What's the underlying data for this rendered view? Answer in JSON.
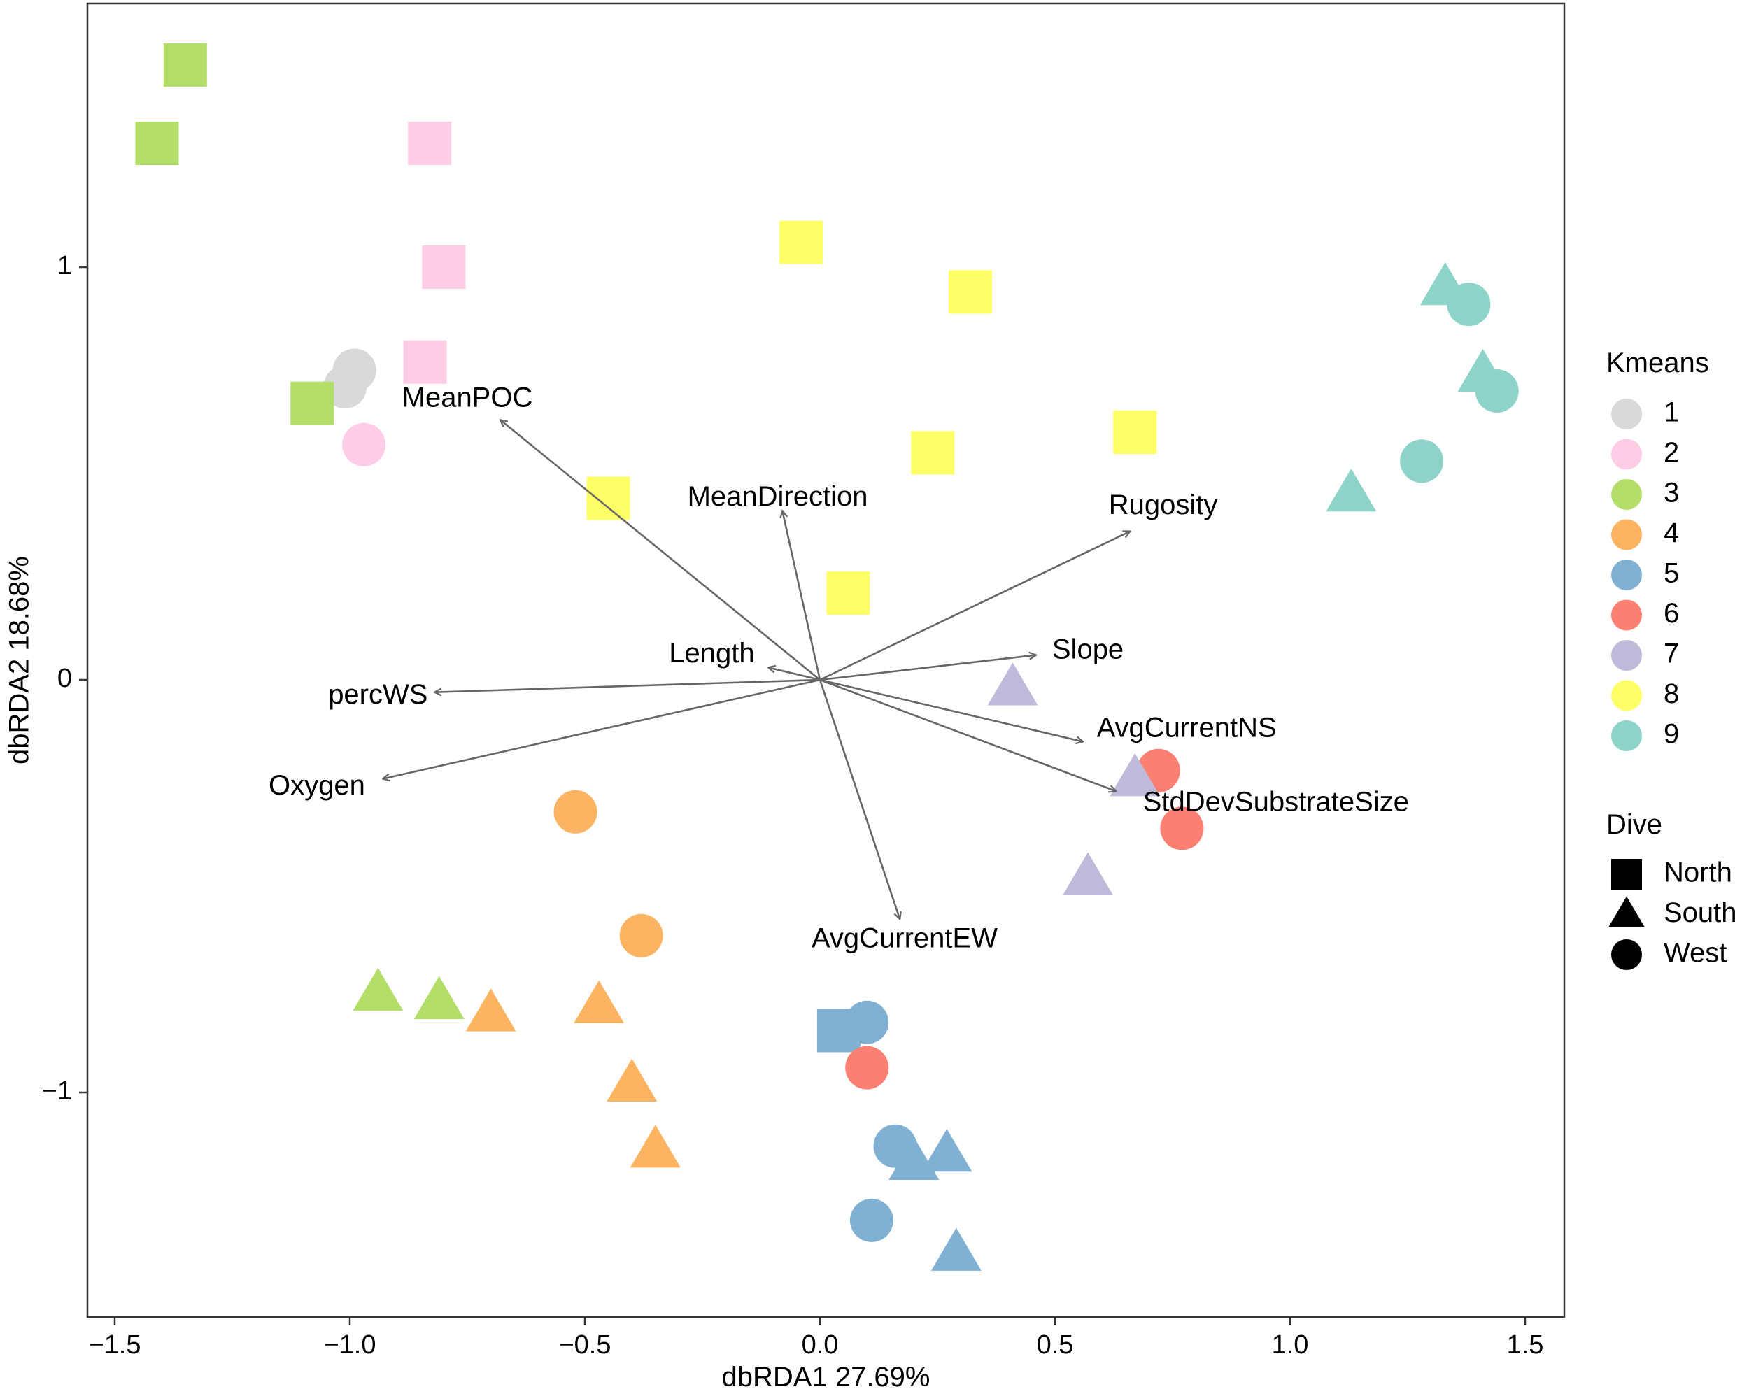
{
  "chart_data": {
    "type": "scatter",
    "title": "",
    "xlabel": "dbRDA1 27.69%",
    "ylabel": "dbRDA2 18.68%",
    "xlim": [
      -1.55,
      1.58
    ],
    "ylim": [
      -1.55,
      1.63
    ],
    "x_ticks": [
      -1.5,
      -1.0,
      -0.5,
      0.0,
      0.5,
      1.0,
      1.5
    ],
    "x_tick_labels": [
      "−1.5",
      "−1.0",
      "−0.5",
      "0.0",
      "0.5",
      "1.0",
      "1.5"
    ],
    "y_ticks": [
      -1,
      0,
      1
    ],
    "y_tick_labels": [
      "−1",
      "0",
      "1"
    ],
    "grid": false,
    "legend": {
      "position": "right",
      "color_title": "Kmeans",
      "shape_title": "Dive",
      "kmeans": [
        {
          "label": "1",
          "color": "#d9d9d9"
        },
        {
          "label": "2",
          "color": "#fccde5"
        },
        {
          "label": "3",
          "color": "#b3de69"
        },
        {
          "label": "4",
          "color": "#fdb462"
        },
        {
          "label": "5",
          "color": "#80b1d3"
        },
        {
          "label": "6",
          "color": "#fb8072"
        },
        {
          "label": "7",
          "color": "#bebada"
        },
        {
          "label": "8",
          "color": "#ffff66"
        },
        {
          "label": "9",
          "color": "#8dd3c7"
        }
      ],
      "dive": [
        {
          "label": "North",
          "shape": "square"
        },
        {
          "label": "South",
          "shape": "triangle"
        },
        {
          "label": "West",
          "shape": "circle"
        }
      ]
    },
    "points": [
      {
        "x": -1.01,
        "y": 0.71,
        "k": 1,
        "dive": "West"
      },
      {
        "x": -0.99,
        "y": 0.75,
        "k": 1,
        "dive": "West"
      },
      {
        "x": -0.83,
        "y": 1.3,
        "k": 2,
        "dive": "North"
      },
      {
        "x": -0.8,
        "y": 1.0,
        "k": 2,
        "dive": "North"
      },
      {
        "x": -0.84,
        "y": 0.77,
        "k": 2,
        "dive": "North"
      },
      {
        "x": -0.97,
        "y": 0.57,
        "k": 2,
        "dive": "West"
      },
      {
        "x": -1.35,
        "y": 1.49,
        "k": 3,
        "dive": "North"
      },
      {
        "x": -1.41,
        "y": 1.3,
        "k": 3,
        "dive": "North"
      },
      {
        "x": -1.08,
        "y": 0.67,
        "k": 3,
        "dive": "North"
      },
      {
        "x": -0.94,
        "y": -0.76,
        "k": 3,
        "dive": "South"
      },
      {
        "x": -0.81,
        "y": -0.78,
        "k": 3,
        "dive": "South"
      },
      {
        "x": -0.52,
        "y": -0.32,
        "k": 4,
        "dive": "West"
      },
      {
        "x": -0.38,
        "y": -0.62,
        "k": 4,
        "dive": "West"
      },
      {
        "x": -0.7,
        "y": -0.81,
        "k": 4,
        "dive": "South"
      },
      {
        "x": -0.47,
        "y": -0.79,
        "k": 4,
        "dive": "South"
      },
      {
        "x": -0.4,
        "y": -0.98,
        "k": 4,
        "dive": "South"
      },
      {
        "x": -0.35,
        "y": -1.14,
        "k": 4,
        "dive": "South"
      },
      {
        "x": 0.04,
        "y": -0.85,
        "k": 5,
        "dive": "North"
      },
      {
        "x": 0.1,
        "y": -0.83,
        "k": 5,
        "dive": "West"
      },
      {
        "x": 0.16,
        "y": -1.13,
        "k": 5,
        "dive": "West"
      },
      {
        "x": 0.11,
        "y": -1.31,
        "k": 5,
        "dive": "West"
      },
      {
        "x": 0.2,
        "y": -1.17,
        "k": 5,
        "dive": "South"
      },
      {
        "x": 0.27,
        "y": -1.15,
        "k": 5,
        "dive": "South"
      },
      {
        "x": 0.29,
        "y": -1.39,
        "k": 5,
        "dive": "South"
      },
      {
        "x": 0.1,
        "y": -0.94,
        "k": 6,
        "dive": "West"
      },
      {
        "x": 0.72,
        "y": -0.22,
        "k": 6,
        "dive": "West"
      },
      {
        "x": 0.77,
        "y": -0.36,
        "k": 6,
        "dive": "West"
      },
      {
        "x": 0.41,
        "y": -0.02,
        "k": 7,
        "dive": "South"
      },
      {
        "x": 0.67,
        "y": -0.24,
        "k": 7,
        "dive": "South"
      },
      {
        "x": 0.57,
        "y": -0.48,
        "k": 7,
        "dive": "South"
      },
      {
        "x": -0.04,
        "y": 1.06,
        "k": 8,
        "dive": "North"
      },
      {
        "x": 0.32,
        "y": 0.94,
        "k": 8,
        "dive": "North"
      },
      {
        "x": 0.67,
        "y": 0.6,
        "k": 8,
        "dive": "North"
      },
      {
        "x": 0.24,
        "y": 0.55,
        "k": 8,
        "dive": "North"
      },
      {
        "x": -0.45,
        "y": 0.44,
        "k": 8,
        "dive": "North"
      },
      {
        "x": 0.06,
        "y": 0.21,
        "k": 8,
        "dive": "North"
      },
      {
        "x": 1.33,
        "y": 0.95,
        "k": 9,
        "dive": "South"
      },
      {
        "x": 1.38,
        "y": 0.91,
        "k": 9,
        "dive": "West"
      },
      {
        "x": 1.41,
        "y": 0.74,
        "k": 9,
        "dive": "South"
      },
      {
        "x": 1.44,
        "y": 0.7,
        "k": 9,
        "dive": "West"
      },
      {
        "x": 1.28,
        "y": 0.53,
        "k": 9,
        "dive": "West"
      },
      {
        "x": 1.13,
        "y": 0.45,
        "k": 9,
        "dive": "South"
      }
    ],
    "vectors": [
      {
        "label": "MeanPOC",
        "x": -0.68,
        "y": 0.63,
        "lx": -0.75,
        "ly": 0.68
      },
      {
        "label": "MeanDirection",
        "x": -0.08,
        "y": 0.41,
        "lx": -0.09,
        "ly": 0.44
      },
      {
        "label": "Rugosity",
        "x": 0.66,
        "y": 0.36,
        "lx": 0.73,
        "ly": 0.42
      },
      {
        "label": "Slope",
        "x": 0.46,
        "y": 0.06,
        "lx": 0.57,
        "ly": 0.07
      },
      {
        "label": "Length",
        "x": -0.11,
        "y": 0.03,
        "lx": -0.23,
        "ly": 0.06
      },
      {
        "label": "percWS",
        "x": -0.82,
        "y": -0.03,
        "lx": -0.94,
        "ly": -0.04
      },
      {
        "label": "Oxygen",
        "x": -0.93,
        "y": -0.24,
        "lx": -1.07,
        "ly": -0.26
      },
      {
        "label": "AvgCurrentNS",
        "x": 0.56,
        "y": -0.15,
        "lx": 0.78,
        "ly": -0.12
      },
      {
        "label": "StdDevSubstrateSize",
        "x": 0.63,
        "y": -0.27,
        "lx": 0.97,
        "ly": -0.3
      },
      {
        "label": "AvgCurrentEW",
        "x": 0.17,
        "y": -0.58,
        "lx": 0.18,
        "ly": -0.63
      }
    ]
  }
}
